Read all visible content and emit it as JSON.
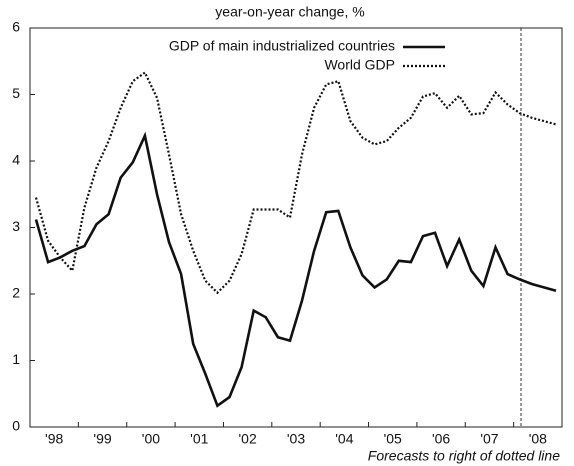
{
  "chart_data": {
    "type": "line",
    "title": "year-on-year change, %",
    "footnote": "Forecasts to right of dotted line",
    "categories": [
      null,
      "'98",
      null,
      null,
      null,
      "'99",
      null,
      null,
      null,
      "'00",
      null,
      null,
      null,
      "'01",
      null,
      null,
      null,
      "'02",
      null,
      null,
      null,
      "'03",
      null,
      null,
      null,
      "'04",
      null,
      null,
      null,
      "'05",
      null,
      null,
      null,
      "'06",
      null,
      null,
      null,
      "'07",
      null,
      null,
      null,
      "'08",
      null,
      null
    ],
    "series": [
      {
        "name": "GDP of main industrialized countries",
        "color": "#111111",
        "style": "solid",
        "values": [
          3.12,
          2.48,
          2.55,
          2.65,
          2.72,
          3.05,
          3.2,
          3.75,
          3.98,
          4.38,
          3.5,
          2.78,
          2.3,
          1.25,
          0.8,
          0.32,
          0.45,
          0.9,
          1.75,
          1.65,
          1.35,
          1.3,
          1.9,
          2.65,
          3.23,
          3.25,
          2.7,
          2.28,
          2.1,
          2.22,
          2.5,
          2.48,
          2.87,
          2.92,
          2.42,
          2.82,
          2.35,
          2.12,
          2.7,
          2.3,
          2.22,
          2.15,
          2.1,
          2.05
        ]
      },
      {
        "name": "World GDP",
        "color": "#111111",
        "style": "dotted",
        "values": [
          3.45,
          2.8,
          2.55,
          2.35,
          3.3,
          3.9,
          4.3,
          4.8,
          5.2,
          5.33,
          4.95,
          4.1,
          3.2,
          2.65,
          2.2,
          2.02,
          2.2,
          2.6,
          3.27,
          3.27,
          3.27,
          3.15,
          4.1,
          4.8,
          5.15,
          5.2,
          4.6,
          4.35,
          4.25,
          4.3,
          4.5,
          4.65,
          4.97,
          5.02,
          4.8,
          4.98,
          4.7,
          4.72,
          5.03,
          4.85,
          4.72,
          4.65,
          4.6,
          4.55
        ]
      }
    ],
    "ylim": [
      0,
      6
    ],
    "yticks": [
      0,
      1,
      2,
      3,
      4,
      5,
      6
    ],
    "grid": false,
    "legend": "top"
  }
}
